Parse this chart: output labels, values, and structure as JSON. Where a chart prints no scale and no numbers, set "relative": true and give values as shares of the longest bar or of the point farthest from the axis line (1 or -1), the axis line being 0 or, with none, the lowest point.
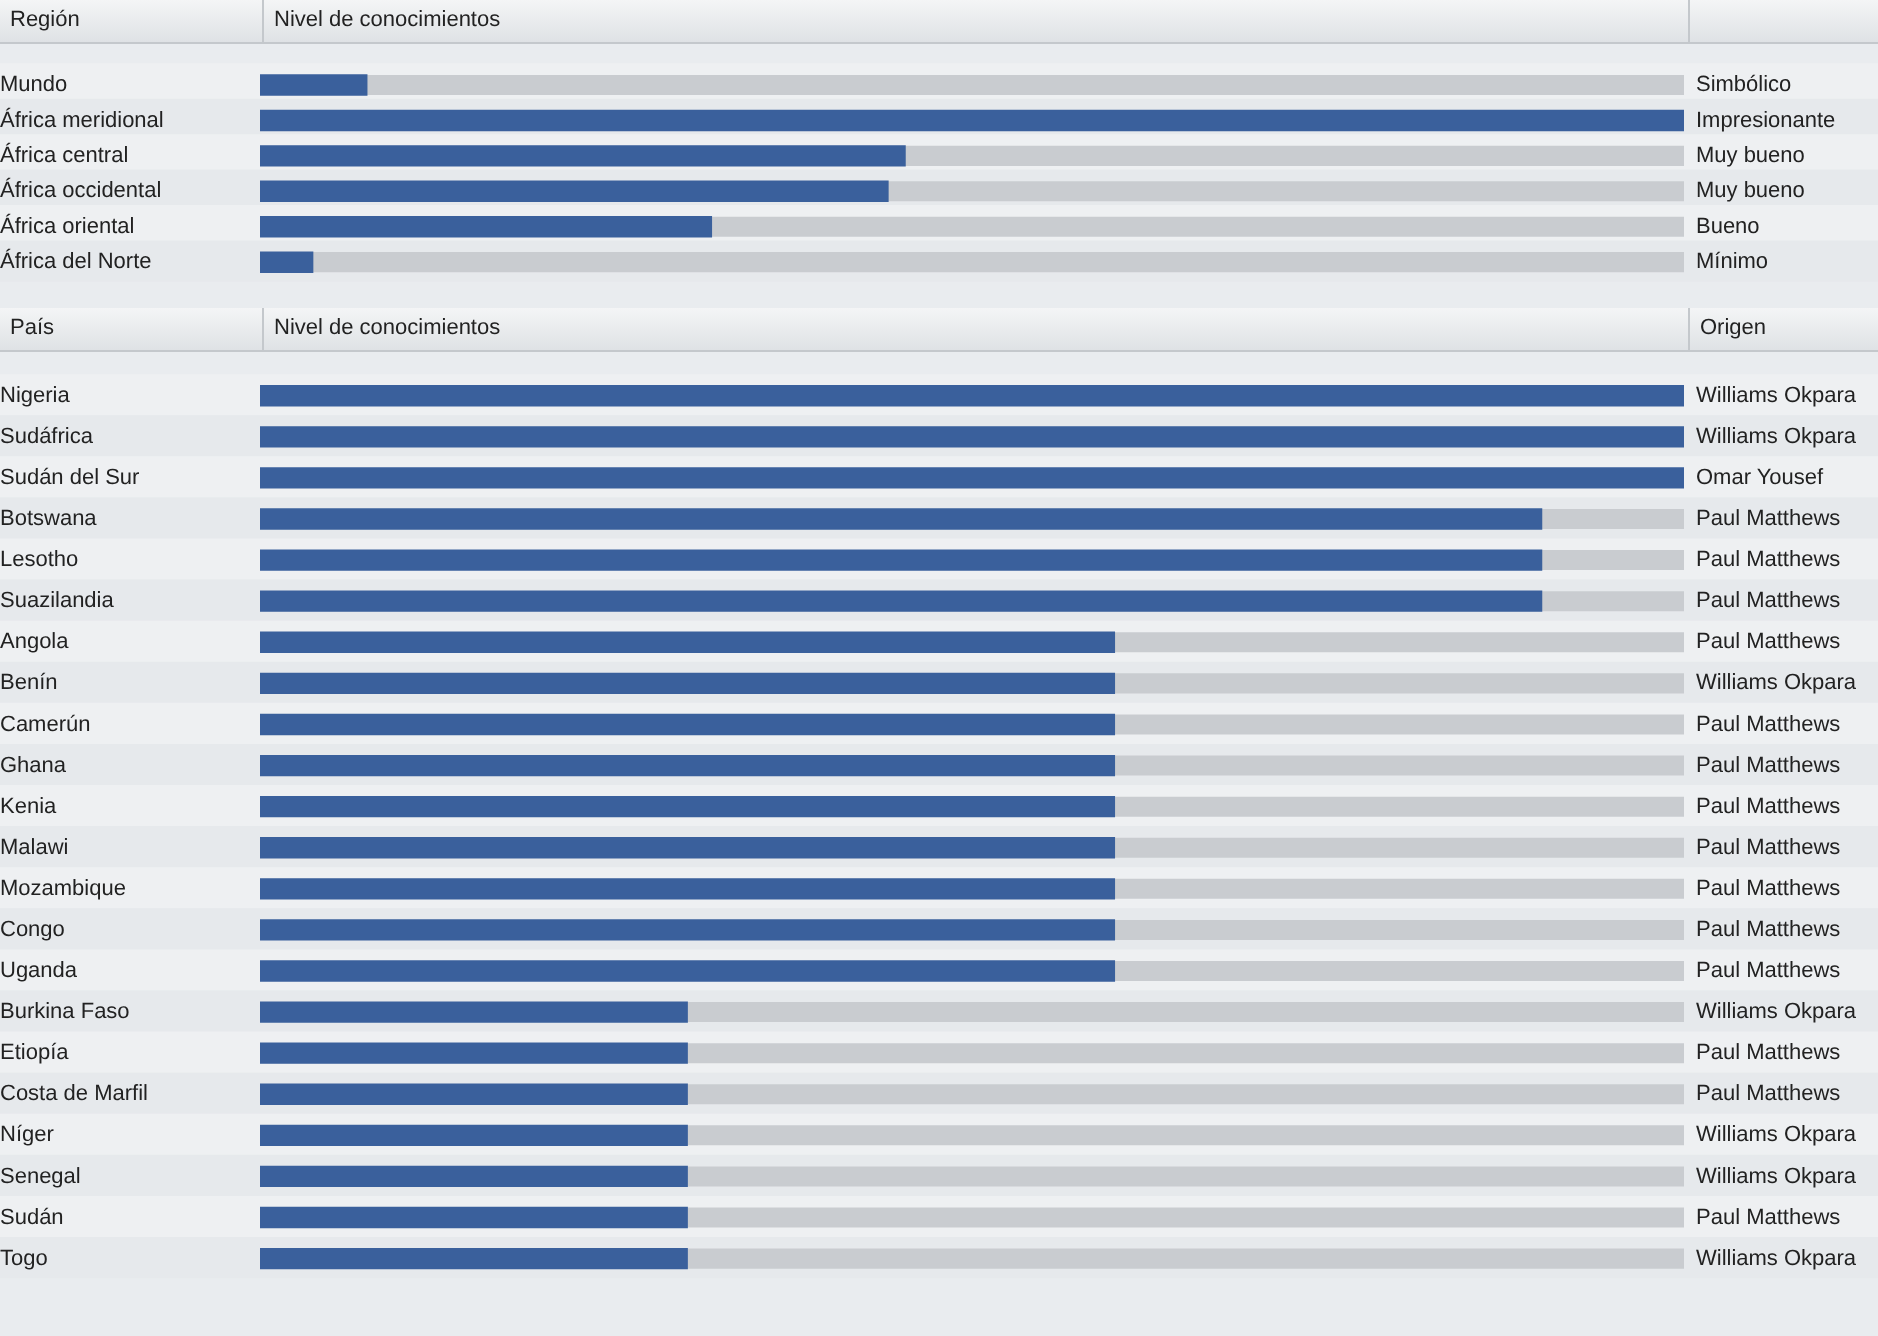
{
  "chart_data": [
    {
      "type": "bar",
      "orientation": "horizontal",
      "relative": true,
      "ylabel": "Región",
      "xlabel": "Nivel de conocimientos",
      "legend": false,
      "grid": false,
      "categories": [
        "Mundo",
        "África meridional",
        "África central",
        "África occidental",
        "África oriental",
        "África del Norte"
      ],
      "series": [
        {
          "color": "#3a609c",
          "values": [
            0.075,
            1,
            0.453,
            0.441,
            0.317,
            0.037
          ]
        }
      ],
      "annotations": [
        "Simbólico",
        "Impresionante",
        "Muy bueno",
        "Muy bueno",
        "Bueno",
        "Mínimo"
      ]
    },
    {
      "type": "bar",
      "orientation": "horizontal",
      "relative": true,
      "ylabel": "País",
      "xlabel": "Nivel de conocimientos",
      "y2label": "Origen",
      "legend": false,
      "grid": false,
      "categories": [
        "Nigeria",
        "Sudáfrica",
        "Sudán del Sur",
        "Botswana",
        "Lesotho",
        "Suazilandia",
        "Angola",
        "Benín",
        "Camerún",
        "Ghana",
        "Kenia",
        "Malawi",
        "Mozambique",
        "Congo",
        "Uganda",
        "Burkina Faso",
        "Etiopía",
        "Costa de Marfil",
        "Níger",
        "Senegal",
        "Sudán",
        "Togo"
      ],
      "series": [
        {
          "color": "#3a609c",
          "values": [
            1,
            1,
            1,
            0.9,
            0.9,
            0.9,
            0.6,
            0.6,
            0.6,
            0.6,
            0.6,
            0.6,
            0.6,
            0.6,
            0.6,
            0.3,
            0.3,
            0.3,
            0.3,
            0.3,
            0.3,
            0.3
          ]
        }
      ],
      "annotations": [
        "Williams Okpara",
        "Williams Okpara",
        "Omar Yousef",
        "Paul Matthews",
        "Paul Matthews",
        "Paul Matthews",
        "Paul Matthews",
        "Williams Okpara",
        "Paul Matthews",
        "Paul Matthews",
        "Paul Matthews",
        "Paul Matthews",
        "Paul Matthews",
        "Paul Matthews",
        "Paul Matthews",
        "Williams Okpara",
        "Paul Matthews",
        "Paul Matthews",
        "Williams Okpara",
        "Williams Okpara",
        "Paul Matthews",
        "Williams Okpara"
      ]
    }
  ]
}
